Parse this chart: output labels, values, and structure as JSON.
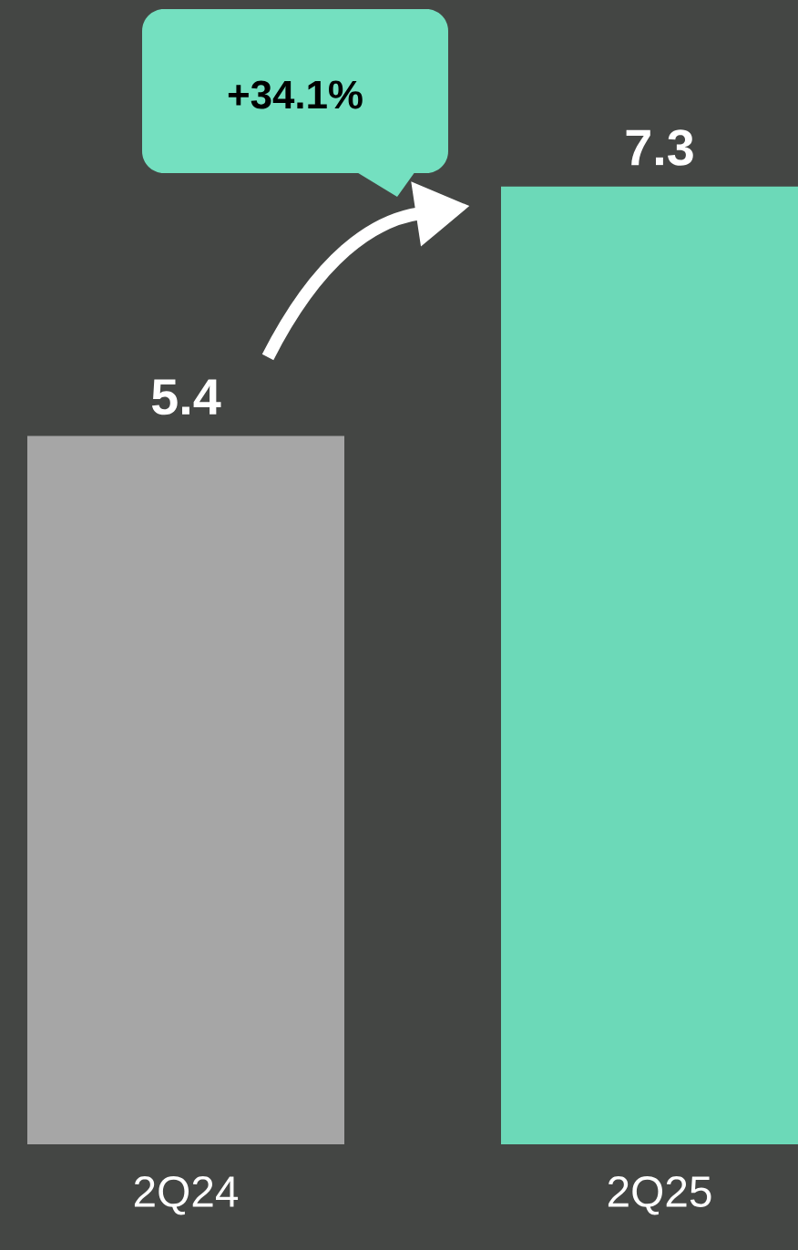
{
  "chart_data": {
    "type": "bar",
    "categories": [
      "2Q24",
      "2Q25"
    ],
    "values": [
      5.4,
      7.3
    ],
    "colors": [
      "#a6a6a6",
      "#6cd9b8"
    ],
    "ylim": [
      0,
      8.7
    ],
    "data_labels": true,
    "annotations": [
      "+34.1%"
    ]
  }
}
